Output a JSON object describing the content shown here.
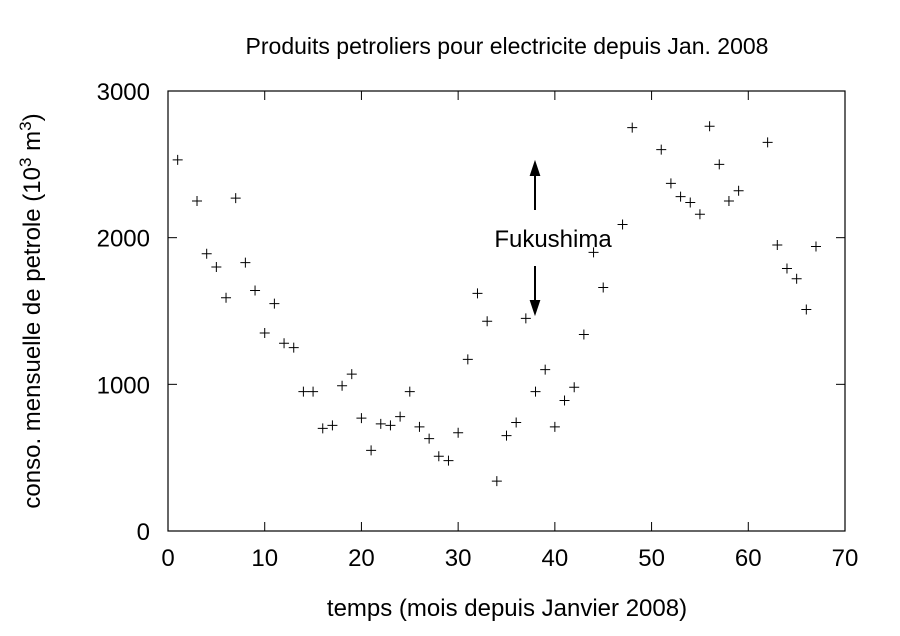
{
  "chart_data": {
    "type": "scatter",
    "title": "Produits petroliers pour electricite depuis Jan. 2008",
    "xlabel": "temps (mois depuis Janvier 2008)",
    "ylabel_parts": [
      "conso. mensuelle de petrole (10",
      "3",
      " m",
      "3",
      ")"
    ],
    "annotation": "Fukushima",
    "x": [
      1,
      3,
      4,
      5,
      6,
      7,
      8,
      9,
      10,
      11,
      12,
      13,
      14,
      15,
      16,
      17,
      18,
      19,
      20,
      21,
      22,
      23,
      24,
      25,
      26,
      27,
      28,
      29,
      30,
      31,
      32,
      33,
      34,
      35,
      36,
      37,
      38,
      39,
      40,
      41,
      42,
      43,
      44,
      45,
      47,
      48,
      51,
      52,
      53,
      54,
      55,
      56,
      57,
      58,
      59,
      62,
      63,
      64,
      65,
      66,
      67
    ],
    "values": [
      2530,
      2250,
      1890,
      1800,
      1590,
      2270,
      1830,
      1640,
      1350,
      1550,
      1280,
      1250,
      950,
      950,
      700,
      720,
      990,
      1070,
      770,
      550,
      730,
      720,
      780,
      950,
      710,
      630,
      510,
      480,
      670,
      1170,
      1620,
      1430,
      340,
      650,
      740,
      1450,
      950,
      1100,
      710,
      890,
      980,
      1340,
      1900,
      1660,
      2090,
      2750,
      2600,
      2370,
      2280,
      2240,
      2160,
      2760,
      2500,
      2250,
      2320,
      2650,
      1950,
      1790,
      1720,
      1510,
      1940
    ],
    "color": "#000000",
    "xlim": [
      0,
      70
    ],
    "xticks": [
      0,
      10,
      20,
      30,
      40,
      50,
      60,
      70
    ],
    "ylim": [
      0,
      3000
    ],
    "yticks": [
      0,
      1000,
      2000,
      3000
    ]
  }
}
